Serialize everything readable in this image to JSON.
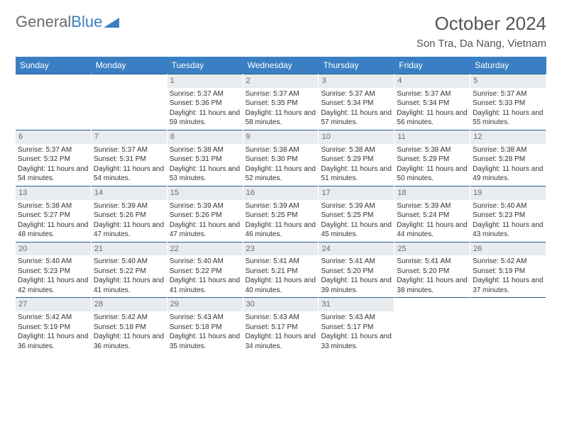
{
  "logo": {
    "text1": "General",
    "text2": "Blue"
  },
  "title": "October 2024",
  "location": "Son Tra, Da Nang, Vietnam",
  "colors": {
    "header_bg": "#3a7fc4",
    "daynum_bg": "#e8ecef",
    "border": "#2b5d8a",
    "text": "#333333",
    "title_text": "#555555"
  },
  "day_names": [
    "Sunday",
    "Monday",
    "Tuesday",
    "Wednesday",
    "Thursday",
    "Friday",
    "Saturday"
  ],
  "weeks": [
    [
      {
        "day": "",
        "sunrise": "",
        "sunset": "",
        "daylight": "",
        "empty": true
      },
      {
        "day": "",
        "sunrise": "",
        "sunset": "",
        "daylight": "",
        "empty": true
      },
      {
        "day": "1",
        "sunrise": "Sunrise: 5:37 AM",
        "sunset": "Sunset: 5:36 PM",
        "daylight": "Daylight: 11 hours and 59 minutes."
      },
      {
        "day": "2",
        "sunrise": "Sunrise: 5:37 AM",
        "sunset": "Sunset: 5:35 PM",
        "daylight": "Daylight: 11 hours and 58 minutes."
      },
      {
        "day": "3",
        "sunrise": "Sunrise: 5:37 AM",
        "sunset": "Sunset: 5:34 PM",
        "daylight": "Daylight: 11 hours and 57 minutes."
      },
      {
        "day": "4",
        "sunrise": "Sunrise: 5:37 AM",
        "sunset": "Sunset: 5:34 PM",
        "daylight": "Daylight: 11 hours and 56 minutes."
      },
      {
        "day": "5",
        "sunrise": "Sunrise: 5:37 AM",
        "sunset": "Sunset: 5:33 PM",
        "daylight": "Daylight: 11 hours and 55 minutes."
      }
    ],
    [
      {
        "day": "6",
        "sunrise": "Sunrise: 5:37 AM",
        "sunset": "Sunset: 5:32 PM",
        "daylight": "Daylight: 11 hours and 54 minutes."
      },
      {
        "day": "7",
        "sunrise": "Sunrise: 5:37 AM",
        "sunset": "Sunset: 5:31 PM",
        "daylight": "Daylight: 11 hours and 54 minutes."
      },
      {
        "day": "8",
        "sunrise": "Sunrise: 5:38 AM",
        "sunset": "Sunset: 5:31 PM",
        "daylight": "Daylight: 11 hours and 53 minutes."
      },
      {
        "day": "9",
        "sunrise": "Sunrise: 5:38 AM",
        "sunset": "Sunset: 5:30 PM",
        "daylight": "Daylight: 11 hours and 52 minutes."
      },
      {
        "day": "10",
        "sunrise": "Sunrise: 5:38 AM",
        "sunset": "Sunset: 5:29 PM",
        "daylight": "Daylight: 11 hours and 51 minutes."
      },
      {
        "day": "11",
        "sunrise": "Sunrise: 5:38 AM",
        "sunset": "Sunset: 5:29 PM",
        "daylight": "Daylight: 11 hours and 50 minutes."
      },
      {
        "day": "12",
        "sunrise": "Sunrise: 5:38 AM",
        "sunset": "Sunset: 5:28 PM",
        "daylight": "Daylight: 11 hours and 49 minutes."
      }
    ],
    [
      {
        "day": "13",
        "sunrise": "Sunrise: 5:38 AM",
        "sunset": "Sunset: 5:27 PM",
        "daylight": "Daylight: 11 hours and 48 minutes."
      },
      {
        "day": "14",
        "sunrise": "Sunrise: 5:39 AM",
        "sunset": "Sunset: 5:26 PM",
        "daylight": "Daylight: 11 hours and 47 minutes."
      },
      {
        "day": "15",
        "sunrise": "Sunrise: 5:39 AM",
        "sunset": "Sunset: 5:26 PM",
        "daylight": "Daylight: 11 hours and 47 minutes."
      },
      {
        "day": "16",
        "sunrise": "Sunrise: 5:39 AM",
        "sunset": "Sunset: 5:25 PM",
        "daylight": "Daylight: 11 hours and 46 minutes."
      },
      {
        "day": "17",
        "sunrise": "Sunrise: 5:39 AM",
        "sunset": "Sunset: 5:25 PM",
        "daylight": "Daylight: 11 hours and 45 minutes."
      },
      {
        "day": "18",
        "sunrise": "Sunrise: 5:39 AM",
        "sunset": "Sunset: 5:24 PM",
        "daylight": "Daylight: 11 hours and 44 minutes."
      },
      {
        "day": "19",
        "sunrise": "Sunrise: 5:40 AM",
        "sunset": "Sunset: 5:23 PM",
        "daylight": "Daylight: 11 hours and 43 minutes."
      }
    ],
    [
      {
        "day": "20",
        "sunrise": "Sunrise: 5:40 AM",
        "sunset": "Sunset: 5:23 PM",
        "daylight": "Daylight: 11 hours and 42 minutes."
      },
      {
        "day": "21",
        "sunrise": "Sunrise: 5:40 AM",
        "sunset": "Sunset: 5:22 PM",
        "daylight": "Daylight: 11 hours and 41 minutes."
      },
      {
        "day": "22",
        "sunrise": "Sunrise: 5:40 AM",
        "sunset": "Sunset: 5:22 PM",
        "daylight": "Daylight: 11 hours and 41 minutes."
      },
      {
        "day": "23",
        "sunrise": "Sunrise: 5:41 AM",
        "sunset": "Sunset: 5:21 PM",
        "daylight": "Daylight: 11 hours and 40 minutes."
      },
      {
        "day": "24",
        "sunrise": "Sunrise: 5:41 AM",
        "sunset": "Sunset: 5:20 PM",
        "daylight": "Daylight: 11 hours and 39 minutes."
      },
      {
        "day": "25",
        "sunrise": "Sunrise: 5:41 AM",
        "sunset": "Sunset: 5:20 PM",
        "daylight": "Daylight: 11 hours and 38 minutes."
      },
      {
        "day": "26",
        "sunrise": "Sunrise: 5:42 AM",
        "sunset": "Sunset: 5:19 PM",
        "daylight": "Daylight: 11 hours and 37 minutes."
      }
    ],
    [
      {
        "day": "27",
        "sunrise": "Sunrise: 5:42 AM",
        "sunset": "Sunset: 5:19 PM",
        "daylight": "Daylight: 11 hours and 36 minutes."
      },
      {
        "day": "28",
        "sunrise": "Sunrise: 5:42 AM",
        "sunset": "Sunset: 5:18 PM",
        "daylight": "Daylight: 11 hours and 36 minutes."
      },
      {
        "day": "29",
        "sunrise": "Sunrise: 5:43 AM",
        "sunset": "Sunset: 5:18 PM",
        "daylight": "Daylight: 11 hours and 35 minutes."
      },
      {
        "day": "30",
        "sunrise": "Sunrise: 5:43 AM",
        "sunset": "Sunset: 5:17 PM",
        "daylight": "Daylight: 11 hours and 34 minutes."
      },
      {
        "day": "31",
        "sunrise": "Sunrise: 5:43 AM",
        "sunset": "Sunset: 5:17 PM",
        "daylight": "Daylight: 11 hours and 33 minutes."
      },
      {
        "day": "",
        "sunrise": "",
        "sunset": "",
        "daylight": "",
        "empty": true
      },
      {
        "day": "",
        "sunrise": "",
        "sunset": "",
        "daylight": "",
        "empty": true
      }
    ]
  ]
}
